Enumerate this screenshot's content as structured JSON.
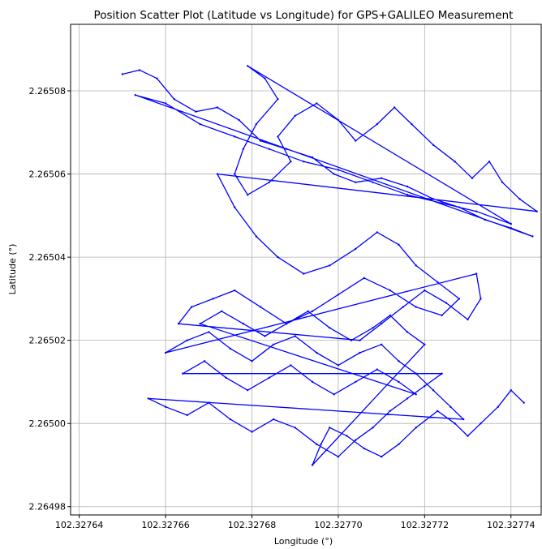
{
  "chart_data": {
    "type": "scatter",
    "title": "Position Scatter Plot (Latitude vs Longitude) for GPS+GALILEO Measurement",
    "xlabel": "Longitude (°)",
    "ylabel": "Latitude (°)",
    "xlim": [
      102.327638,
      102.327747
    ],
    "ylim": [
      2.264978,
      2.265096
    ],
    "grid": true,
    "marker_color": "#0000ff",
    "x_ticks": [
      {
        "value": 102.32764,
        "label": "102.32764"
      },
      {
        "value": 102.32766,
        "label": "102.32766"
      },
      {
        "value": 102.32768,
        "label": "102.32768"
      },
      {
        "value": 102.3277,
        "label": "102.32770"
      },
      {
        "value": 102.32772,
        "label": "102.32772"
      },
      {
        "value": 102.32774,
        "label": "102.32774"
      }
    ],
    "y_ticks": [
      {
        "value": 2.26498,
        "label": "2.26498"
      },
      {
        "value": 2.265,
        "label": "2.26500"
      },
      {
        "value": 2.26502,
        "label": "2.26502"
      },
      {
        "value": 2.26504,
        "label": "2.26504"
      },
      {
        "value": 2.26506,
        "label": "2.26506"
      },
      {
        "value": 2.26508,
        "label": "2.26508"
      }
    ],
    "series": [
      {
        "points": [
          [
            102.32765,
            2.265084
          ],
          [
            102.327654,
            2.265085
          ],
          [
            102.327658,
            2.265083
          ],
          [
            102.327662,
            2.265078
          ],
          [
            102.327667,
            2.265075
          ],
          [
            102.327672,
            2.265076
          ],
          [
            102.327677,
            2.265073
          ],
          [
            102.327682,
            2.265068
          ],
          [
            102.327688,
            2.265066
          ],
          [
            102.327694,
            2.265064
          ],
          [
            102.327699,
            2.26506
          ],
          [
            102.327704,
            2.265058
          ],
          [
            102.32771,
            2.265059
          ],
          [
            102.327716,
            2.265057
          ],
          [
            102.327722,
            2.265054
          ],
          [
            102.327728,
            2.265052
          ],
          [
            102.327734,
            2.265049
          ],
          [
            102.32774,
            2.265047
          ],
          [
            102.327745,
            2.265045
          ],
          [
            102.327653,
            2.265079
          ],
          [
            102.32766,
            2.265077
          ],
          [
            102.327668,
            2.265072
          ],
          [
            102.327676,
            2.265069
          ],
          [
            102.327684,
            2.265066
          ],
          [
            102.327692,
            2.265063
          ],
          [
            102.3277,
            2.265061
          ],
          [
            102.327708,
            2.265058
          ],
          [
            102.327716,
            2.265055
          ],
          [
            102.327724,
            2.265053
          ],
          [
            102.327732,
            2.265051
          ],
          [
            102.32774,
            2.265048
          ],
          [
            102.327679,
            2.265086
          ],
          [
            102.327683,
            2.265083
          ],
          [
            102.327686,
            2.265078
          ],
          [
            102.327681,
            2.265072
          ],
          [
            102.327678,
            2.265066
          ],
          [
            102.327676,
            2.26506
          ],
          [
            102.327679,
            2.265055
          ],
          [
            102.327684,
            2.265058
          ],
          [
            102.327689,
            2.265063
          ],
          [
            102.327686,
            2.265069
          ],
          [
            102.32769,
            2.265074
          ],
          [
            102.327695,
            2.265077
          ],
          [
            102.3277,
            2.265073
          ],
          [
            102.327704,
            2.265068
          ],
          [
            102.327709,
            2.265072
          ],
          [
            102.327713,
            2.265076
          ],
          [
            102.327717,
            2.265072
          ],
          [
            102.327722,
            2.265067
          ],
          [
            102.327727,
            2.265063
          ],
          [
            102.327731,
            2.265059
          ],
          [
            102.327735,
            2.265063
          ],
          [
            102.327738,
            2.265058
          ],
          [
            102.327742,
            2.265054
          ],
          [
            102.327746,
            2.265051
          ],
          [
            102.327672,
            2.26506
          ],
          [
            102.327676,
            2.265052
          ],
          [
            102.327681,
            2.265045
          ],
          [
            102.327686,
            2.26504
          ],
          [
            102.327692,
            2.265036
          ],
          [
            102.327698,
            2.265038
          ],
          [
            102.327704,
            2.265042
          ],
          [
            102.327709,
            2.265046
          ],
          [
            102.327714,
            2.265043
          ],
          [
            102.327718,
            2.265038
          ],
          [
            102.327723,
            2.265034
          ],
          [
            102.327728,
            2.26503
          ],
          [
            102.327724,
            2.265026
          ],
          [
            102.327718,
            2.265028
          ],
          [
            102.327712,
            2.265032
          ],
          [
            102.327706,
            2.265035
          ],
          [
            102.3277,
            2.265031
          ],
          [
            102.327694,
            2.265027
          ],
          [
            102.327688,
            2.265024
          ],
          [
            102.327682,
            2.265028
          ],
          [
            102.327676,
            2.265032
          ],
          [
            102.327671,
            2.26503
          ],
          [
            102.327666,
            2.265028
          ],
          [
            102.327663,
            2.265024
          ],
          [
            102.327705,
            2.26502
          ],
          [
            102.32771,
            2.265024
          ],
          [
            102.327715,
            2.265028
          ],
          [
            102.32772,
            2.265032
          ],
          [
            102.327725,
            2.265029
          ],
          [
            102.32773,
            2.265025
          ],
          [
            102.327733,
            2.26503
          ],
          [
            102.327732,
            2.265036
          ],
          [
            102.32766,
            2.265017
          ],
          [
            102.327665,
            2.26502
          ],
          [
            102.32767,
            2.265022
          ],
          [
            102.327675,
            2.265018
          ],
          [
            102.32768,
            2.265015
          ],
          [
            102.327685,
            2.265019
          ],
          [
            102.32769,
            2.265021
          ],
          [
            102.327695,
            2.265017
          ],
          [
            102.3277,
            2.265014
          ],
          [
            102.327705,
            2.265017
          ],
          [
            102.32771,
            2.265019
          ],
          [
            102.327714,
            2.265015
          ],
          [
            102.327718,
            2.265012
          ],
          [
            102.327722,
            2.265008
          ],
          [
            102.327726,
            2.265004
          ],
          [
            102.327729,
            2.265001
          ],
          [
            102.327656,
            2.265006
          ],
          [
            102.32766,
            2.265004
          ],
          [
            102.327665,
            2.265002
          ],
          [
            102.32767,
            2.265005
          ],
          [
            102.327675,
            2.265001
          ],
          [
            102.32768,
            2.264998
          ],
          [
            102.327685,
            2.265001
          ],
          [
            102.32769,
            2.264999
          ],
          [
            102.327695,
            2.264995
          ],
          [
            102.3277,
            2.264992
          ],
          [
            102.327704,
            2.264996
          ],
          [
            102.327708,
            2.264999
          ],
          [
            102.327712,
            2.265003
          ],
          [
            102.327716,
            2.265006
          ],
          [
            102.32772,
            2.265009
          ],
          [
            102.327724,
            2.265012
          ],
          [
            102.327664,
            2.265012
          ],
          [
            102.327669,
            2.265015
          ],
          [
            102.327674,
            2.265011
          ],
          [
            102.327679,
            2.265008
          ],
          [
            102.327684,
            2.265011
          ],
          [
            102.327689,
            2.265014
          ],
          [
            102.327694,
            2.26501
          ],
          [
            102.327699,
            2.265007
          ],
          [
            102.327704,
            2.26501
          ],
          [
            102.327709,
            2.265013
          ],
          [
            102.327714,
            2.26501
          ],
          [
            102.327718,
            2.265007
          ],
          [
            102.327668,
            2.265024
          ],
          [
            102.327673,
            2.265027
          ],
          [
            102.327678,
            2.265024
          ],
          [
            102.327683,
            2.265021
          ],
          [
            102.327688,
            2.265024
          ],
          [
            102.327693,
            2.265027
          ],
          [
            102.327698,
            2.265023
          ],
          [
            102.327703,
            2.26502
          ],
          [
            102.327708,
            2.265023
          ],
          [
            102.327712,
            2.265026
          ],
          [
            102.327716,
            2.265022
          ],
          [
            102.32772,
            2.265019
          ],
          [
            102.327694,
            2.26499
          ],
          [
            102.327696,
            2.264995
          ],
          [
            102.327698,
            2.264999
          ],
          [
            102.327702,
            2.264997
          ],
          [
            102.327706,
            2.264994
          ],
          [
            102.32771,
            2.264992
          ],
          [
            102.327714,
            2.264995
          ],
          [
            102.327718,
            2.264999
          ],
          [
            102.327723,
            2.265003
          ],
          [
            102.327727,
            2.265
          ],
          [
            102.32773,
            2.264997
          ],
          [
            102.327733,
            2.265
          ],
          [
            102.327737,
            2.265004
          ],
          [
            102.32774,
            2.265008
          ],
          [
            102.327743,
            2.265005
          ]
        ]
      }
    ]
  }
}
